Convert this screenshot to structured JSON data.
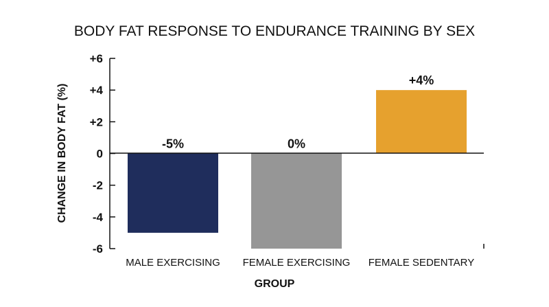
{
  "chart_data": {
    "type": "bar",
    "title": "BODY FAT RESPONSE TO ENDURANCE TRAINING BY SEX",
    "xlabel": "GROUP",
    "ylabel": "CHANGE IN BODY FAT (%)",
    "categories": [
      "MALE EXERCISING",
      "FEMALE EXERCISING",
      "FEMALE SEDENTARY"
    ],
    "values": [
      -5,
      0,
      4
    ],
    "data_labels": [
      "-5%",
      "0%",
      "+4%"
    ],
    "colors": [
      "#1f2d5c",
      "#969696",
      "#e6a12e"
    ],
    "ylim": [
      -6,
      6
    ],
    "yticks": [
      6,
      4,
      2,
      0,
      -2,
      -4,
      -6
    ],
    "ytick_labels": [
      "+6",
      "+4",
      "+2",
      "0",
      "-2",
      "-4",
      "-6"
    ],
    "grid": false,
    "legend": "none"
  }
}
